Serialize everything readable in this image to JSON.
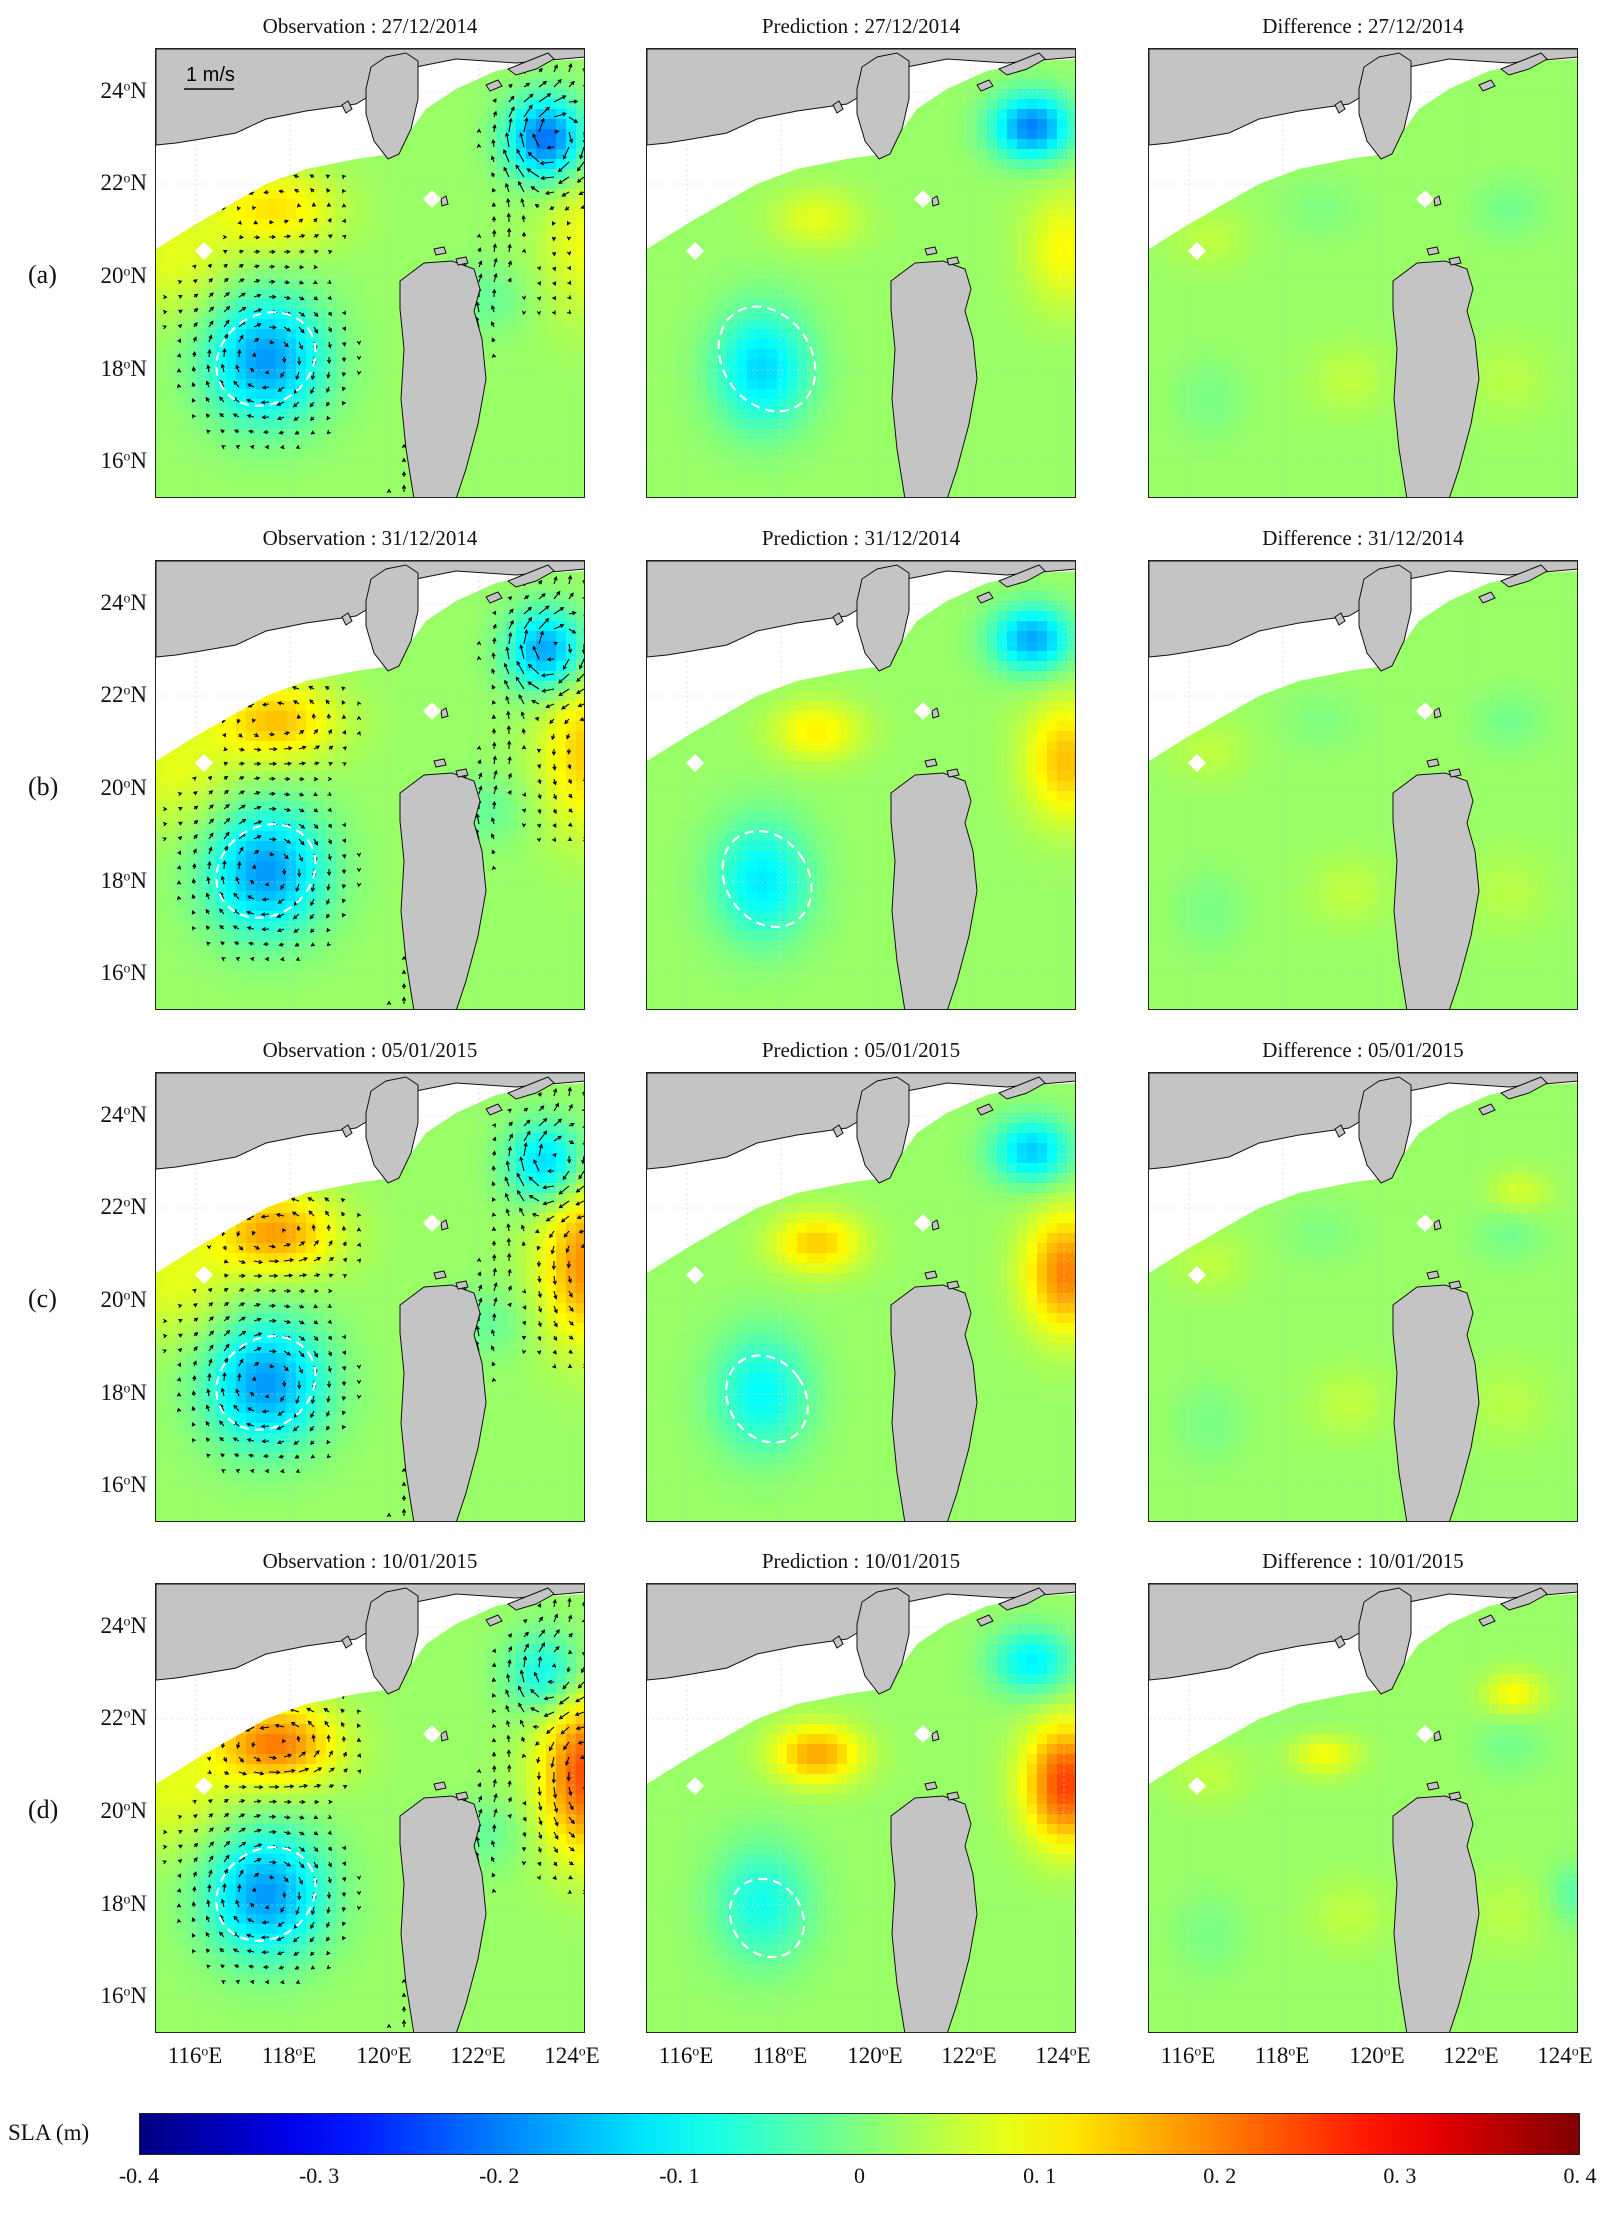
{
  "figure": {
    "rows": [
      {
        "label": "(a)",
        "titles": [
          "Observation : 27/12/2014",
          "Prediction : 27/12/2014",
          "Difference : 27/12/2014"
        ]
      },
      {
        "label": "(b)",
        "titles": [
          "Observation : 31/12/2014",
          "Prediction : 31/12/2014",
          "Difference : 31/12/2014"
        ]
      },
      {
        "label": "(c)",
        "titles": [
          "Observation : 05/01/2015",
          "Prediction : 05/01/2015",
          "Difference : 05/01/2015"
        ]
      },
      {
        "label": "(d)",
        "titles": [
          "Observation : 10/01/2015",
          "Prediction : 10/01/2015",
          "Difference : 10/01/2015"
        ]
      }
    ],
    "latitude_labels": [
      {
        "deg": "24",
        "sup": "o",
        "hemi": "N"
      },
      {
        "deg": "22",
        "sup": "o",
        "hemi": "N"
      },
      {
        "deg": "20",
        "sup": "o",
        "hemi": "N"
      },
      {
        "deg": "18",
        "sup": "o",
        "hemi": "N"
      },
      {
        "deg": "16",
        "sup": "o",
        "hemi": "N"
      }
    ],
    "longitude_labels": [
      {
        "deg": "116",
        "sup": "o",
        "hemi": "E"
      },
      {
        "deg": "118",
        "sup": "o",
        "hemi": "E"
      },
      {
        "deg": "120",
        "sup": "o",
        "hemi": "E"
      },
      {
        "deg": "122",
        "sup": "o",
        "hemi": "E"
      },
      {
        "deg": "124",
        "sup": "o",
        "hemi": "E"
      }
    ],
    "scale_arrow_label": "1 m/s",
    "colorbar": {
      "title": "SLA (m)",
      "ticks": [
        "-0. 4",
        "-0. 3",
        "-0. 2",
        "-0. 1",
        "0",
        "0. 1",
        "0. 2",
        "0. 3",
        "0. 4"
      ],
      "range": [
        -0.4,
        0.4
      ],
      "colormap": "jet"
    },
    "colors": {
      "land": "#c4c4c4",
      "background_field": "#7fe08a",
      "contour": "#ffffff",
      "vector": "#000000"
    }
  }
}
